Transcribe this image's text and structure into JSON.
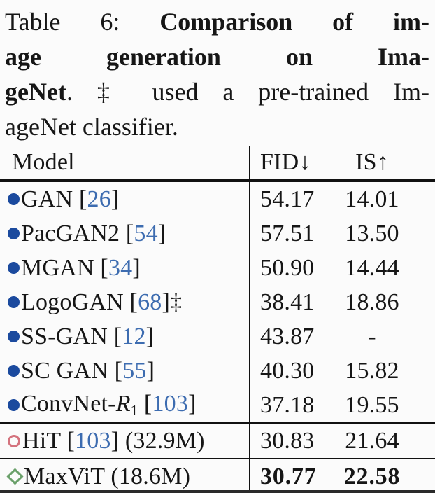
{
  "colors": {
    "text": "#161616",
    "cite": "#3d6cb0",
    "bullet": "#1b4a9e",
    "circle": "#d4737e",
    "diamond": "#6aa06a",
    "rule": "#111111",
    "background": "#fbfbfb"
  },
  "caption": {
    "lines": [
      {
        "justify": true,
        "segments": [
          {
            "text": "Table 6: ",
            "bold": false
          },
          {
            "text": "Comparison of im-",
            "bold": true
          }
        ]
      },
      {
        "justify": true,
        "segments": [
          {
            "text": "age generation on Ima-",
            "bold": true
          }
        ]
      },
      {
        "justify": true,
        "segments": [
          {
            "text": "geNet",
            "bold": true
          },
          {
            "text": ". ‡ used a pre-trained Im-",
            "bold": false
          }
        ]
      },
      {
        "justify": false,
        "segments": [
          {
            "text": "ageNet classifier.",
            "bold": false
          }
        ]
      }
    ]
  },
  "table": {
    "header": {
      "model": "Model",
      "fid": "FID↓",
      "is": "IS↑"
    },
    "rows": [
      {
        "marker": "bullet",
        "name": [
          {
            "text": "GAN"
          }
        ],
        "cite": "26",
        "after": "",
        "fid": "54.17",
        "is": "14.01",
        "bold": false,
        "rule_above": false
      },
      {
        "marker": "bullet",
        "name": [
          {
            "text": "PacGAN2"
          }
        ],
        "cite": "54",
        "after": "",
        "fid": "57.51",
        "is": "13.50",
        "bold": false,
        "rule_above": false
      },
      {
        "marker": "bullet",
        "name": [
          {
            "text": "MGAN"
          }
        ],
        "cite": "34",
        "after": "",
        "fid": "50.90",
        "is": "14.44",
        "bold": false,
        "rule_above": false
      },
      {
        "marker": "bullet",
        "name": [
          {
            "text": "LogoGAN"
          }
        ],
        "cite": "68",
        "after": "‡",
        "fid": "38.41",
        "is": "18.86",
        "bold": false,
        "rule_above": false
      },
      {
        "marker": "bullet",
        "name": [
          {
            "text": "SS-GAN"
          }
        ],
        "cite": "12",
        "after": "",
        "fid": "43.87",
        "is": "-",
        "bold": false,
        "rule_above": false
      },
      {
        "marker": "bullet",
        "name": [
          {
            "text": "SC GAN"
          }
        ],
        "cite": "55",
        "after": "",
        "fid": "40.30",
        "is": "15.82",
        "bold": false,
        "rule_above": false
      },
      {
        "marker": "bullet",
        "name": [
          {
            "text": "ConvNet-"
          },
          {
            "text": "R",
            "style": "italic"
          },
          {
            "text": "1",
            "style": "sub"
          }
        ],
        "cite": "103",
        "after": "",
        "fid": "37.18",
        "is": "19.55",
        "bold": false,
        "rule_above": false
      },
      {
        "marker": "circle",
        "name": [
          {
            "text": "HiT"
          }
        ],
        "cite": "103",
        "after": " (32.9M)",
        "fid": "30.83",
        "is": "21.64",
        "bold": false,
        "rule_above": true
      },
      {
        "marker": "diamond",
        "name": [
          {
            "text": "MaxViT (18.6M)"
          }
        ],
        "cite": null,
        "after": "",
        "fid": "30.77",
        "is": "22.58",
        "bold": true,
        "rule_above": true
      }
    ]
  }
}
